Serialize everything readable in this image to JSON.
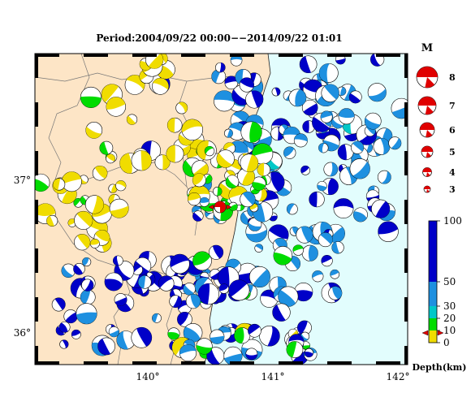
{
  "title": "Period:2004/09/22 00:00−−2014/09/22 01:01",
  "x_ticks": [
    "140°",
    "141°",
    "142°"
  ],
  "y_ticks": [
    "37°",
    "36°"
  ],
  "legend": {
    "title": "M",
    "magnitudes": [
      "8",
      "7",
      "6",
      "5",
      "4",
      "3"
    ]
  },
  "colorbar": {
    "labels": [
      "100",
      "50",
      "30",
      "20",
      "10",
      "0"
    ],
    "depth_values": [
      100,
      50,
      30,
      20,
      10,
      0
    ],
    "title": "Depth(km)",
    "marker_depth": 7
  },
  "colors": {
    "land": "#fde5c6",
    "sea": "#e2fdfd",
    "deep": "#0000c8",
    "mid": "#1e90e0",
    "cyan": "#00c8c8",
    "green": "#00dc00",
    "yellow": "#f0dc00",
    "mainshock": "#e00000"
  },
  "map": {
    "extent_lon": [
      139.1,
      142.1
    ],
    "extent_lat": [
      35.8,
      37.95
    ]
  }
}
